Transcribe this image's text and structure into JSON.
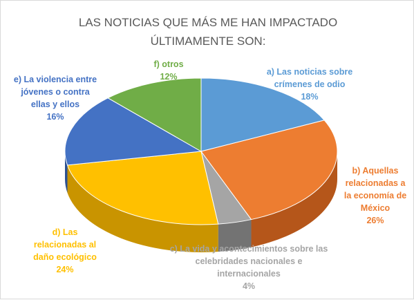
{
  "chart_data": {
    "type": "pie",
    "title_lines": [
      "LAS NOTICIAS QUE MÁS ME HAN IMPACTADO",
      "ÚLTIMAMENTE SON:"
    ],
    "legend": "none",
    "slices": [
      {
        "name": "a) Las noticias sobre crímenes de odio",
        "value": 18,
        "color": "#5b9bd5",
        "side": "#3f77ad",
        "label_lines": [
          "a)   Las noticias sobre",
          "crímenes de odio",
          "18%"
        ]
      },
      {
        "name": "b) Aquellas relacionadas a la economía de México",
        "value": 26,
        "color": "#ed7d31",
        "side": "#b5561a",
        "label_lines": [
          "b) Aquellas",
          "relacionadas a",
          "la economía de",
          "México",
          "26%"
        ]
      },
      {
        "name": "c) La vida y acontecimientos sobre las celebridades nacionales e internacionales",
        "value": 4,
        "color": "#a5a5a5",
        "side": "#737373",
        "label_lines": [
          "c) La vida y acontecimientos sobre las",
          "celebridades nacionales e",
          "internacionales",
          "4%"
        ]
      },
      {
        "name": "d) Las relacionadas al daño ecológico",
        "value": 24,
        "color": "#ffc000",
        "side": "#c99400",
        "label_lines": [
          "d) Las",
          "relacionadas al",
          "daño ecológico",
          "24%"
        ]
      },
      {
        "name": "e) La violencia entre jóvenes o contra ellas y ellos",
        "value": 16,
        "color": "#4472c4",
        "side": "#2c5192",
        "label_lines": [
          "e) La violencia entre",
          "jóvenes o contra",
          "ellas y ellos",
          "16%"
        ]
      },
      {
        "name": "f) otros",
        "value": 12,
        "color": "#70ad47",
        "side": "#4e7f30",
        "label_lines": [
          "f) otros",
          "12%"
        ]
      }
    ]
  }
}
